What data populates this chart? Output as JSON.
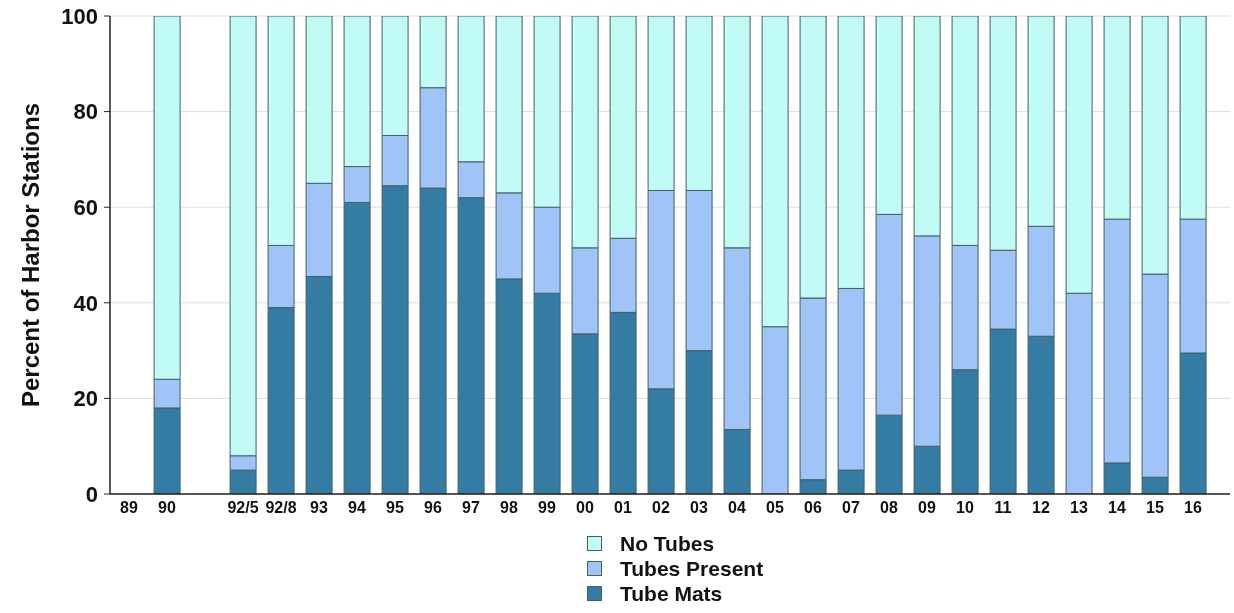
{
  "chart_data": {
    "type": "bar",
    "stacked": true,
    "ylabel": "Percent of Harbor Stations",
    "categories": [
      "89",
      "90",
      null,
      "92/5",
      "92/8",
      "93",
      "94",
      "95",
      "96",
      "97",
      "98",
      "99",
      "00",
      "01",
      "02",
      "03",
      "04",
      "05",
      "06",
      "07",
      "08",
      "09",
      "10",
      "11",
      "12",
      "13",
      "14",
      "15",
      "16"
    ],
    "series": [
      {
        "name": "Tube Mats",
        "color": "#357ca4",
        "values": [
          null,
          18,
          null,
          5,
          39,
          45.5,
          61,
          64.5,
          64,
          62,
          45,
          42,
          33.5,
          38,
          22,
          30,
          13.5,
          0,
          3,
          5,
          16.5,
          10,
          26,
          34.5,
          33,
          0,
          6.5,
          3.5,
          29.5
        ]
      },
      {
        "name": "Tubes Present",
        "color": "#a0c4f8",
        "values": [
          null,
          6,
          null,
          3,
          13,
          19.5,
          7.5,
          10.5,
          21,
          7.5,
          18,
          18,
          18,
          15.5,
          41.5,
          33.5,
          38,
          35,
          38,
          38,
          42,
          44,
          26,
          16.5,
          23,
          42,
          51,
          42.5,
          28
        ]
      },
      {
        "name": "No Tubes",
        "color": "#c0fbf6",
        "values": [
          null,
          76,
          null,
          92,
          48,
          35,
          31.5,
          25,
          15,
          30.5,
          37,
          40,
          48.5,
          46.5,
          36.5,
          36.5,
          48.5,
          65,
          59,
          57,
          41.5,
          46,
          48,
          49,
          44,
          58,
          42.5,
          54,
          42.5
        ]
      }
    ],
    "ylim": [
      0,
      100
    ],
    "yticks": [
      0,
      20,
      40,
      60,
      80,
      100
    ],
    "grid": "y",
    "legend": "bottom"
  }
}
